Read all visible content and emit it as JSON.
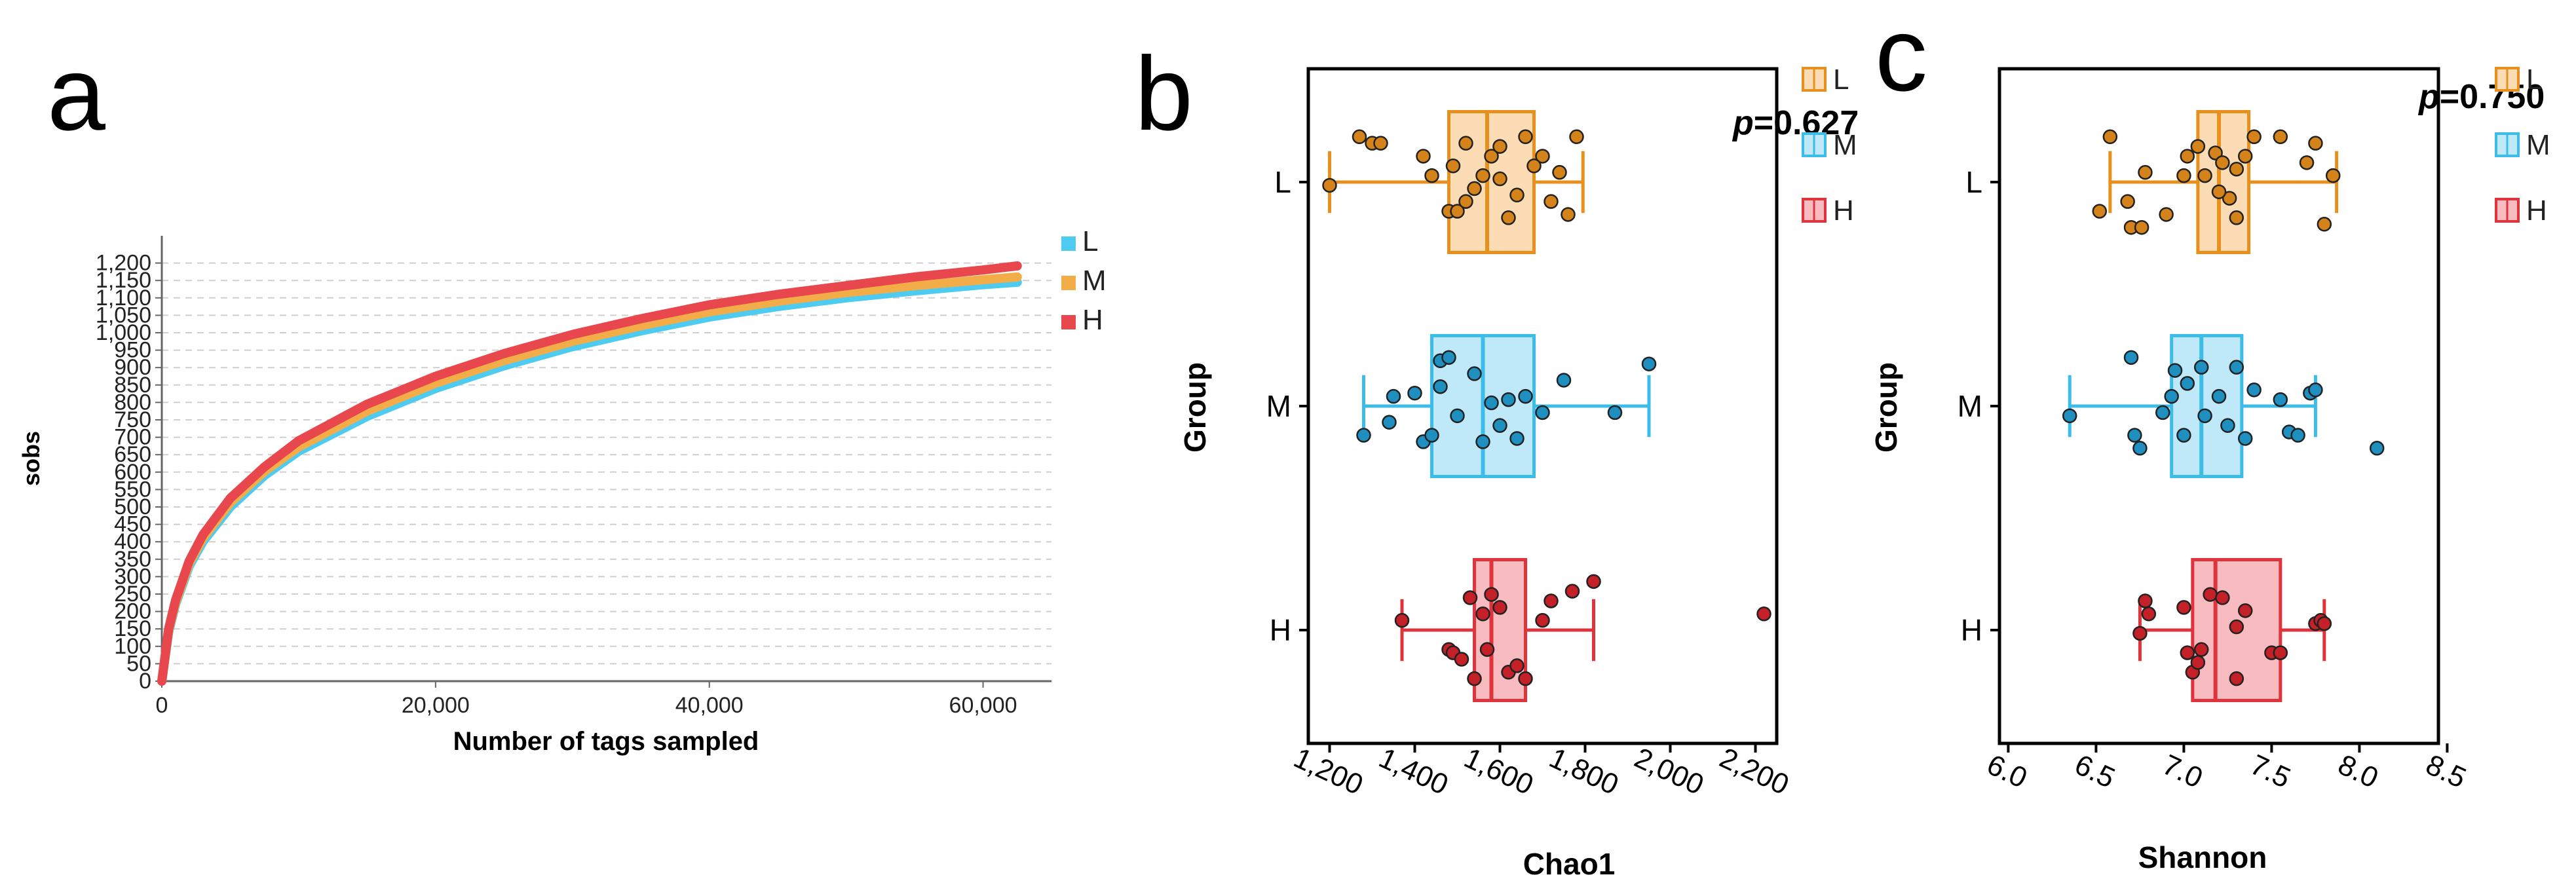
{
  "chart_data": [
    {
      "panel": "a",
      "type": "line",
      "title": "",
      "xlabel": "Number of tags sampled",
      "ylabel": "sobs",
      "xlim": [
        0,
        65000
      ],
      "ylim": [
        0,
        1250
      ],
      "xticks": [
        0,
        20000,
        40000,
        60000
      ],
      "xtick_labels": [
        "0",
        "20,000",
        "40,000",
        "60,000"
      ],
      "yticks": [
        0,
        50,
        100,
        150,
        200,
        250,
        300,
        350,
        400,
        450,
        500,
        550,
        600,
        650,
        700,
        750,
        800,
        850,
        900,
        950,
        1000,
        1050,
        1100,
        1150,
        1200
      ],
      "ytick_labels": [
        "0",
        "50",
        "100",
        "150",
        "200",
        "250",
        "300",
        "350",
        "400",
        "450",
        "500",
        "550",
        "600",
        "650",
        "700",
        "750",
        "800",
        "850",
        "900",
        "950",
        "1,000",
        "1,050",
        "1,100",
        "1,150",
        "1,200"
      ],
      "grid": true,
      "legend_position": "right",
      "series": [
        {
          "name": "L",
          "color": "#4ecbf0",
          "x": [
            0,
            500,
            1000,
            2000,
            3000,
            5000,
            7500,
            10000,
            15000,
            20000,
            25000,
            30000,
            35000,
            40000,
            45000,
            50000,
            55000,
            60000,
            62500
          ],
          "y": [
            0,
            140,
            220,
            330,
            400,
            500,
            590,
            660,
            760,
            840,
            905,
            960,
            1005,
            1045,
            1075,
            1100,
            1120,
            1138,
            1145
          ]
        },
        {
          "name": "M",
          "color": "#f2ac48",
          "x": [
            0,
            500,
            1000,
            2000,
            3000,
            5000,
            7500,
            10000,
            15000,
            20000,
            25000,
            30000,
            35000,
            40000,
            45000,
            50000,
            55000,
            60000,
            62500
          ],
          "y": [
            0,
            145,
            225,
            338,
            410,
            512,
            602,
            672,
            775,
            855,
            920,
            975,
            1020,
            1060,
            1090,
            1115,
            1135,
            1152,
            1160
          ]
        },
        {
          "name": "H",
          "color": "#e8474d",
          "x": [
            0,
            500,
            1000,
            2000,
            3000,
            5000,
            7500,
            10000,
            15000,
            20000,
            25000,
            30000,
            35000,
            40000,
            45000,
            50000,
            55000,
            60000,
            62500
          ],
          "y": [
            0,
            150,
            232,
            345,
            420,
            525,
            615,
            690,
            795,
            875,
            940,
            995,
            1040,
            1080,
            1110,
            1135,
            1160,
            1180,
            1192
          ]
        }
      ]
    },
    {
      "panel": "b",
      "type": "box",
      "xlabel": "Chao1",
      "ylabel": "Group",
      "xlim": [
        1150,
        2250
      ],
      "xticks": [
        1200,
        1400,
        1600,
        1800,
        2000,
        2200
      ],
      "xtick_labels": [
        "1,200",
        "1,400",
        "1,600",
        "1,800",
        "2,000",
        "2,200"
      ],
      "annotation_prefix": "p",
      "annotation_value": "=0.627",
      "legend_position": "right",
      "groups": [
        {
          "name": "L",
          "fill": "#fbdcb4",
          "stroke": "#e8901e",
          "dot": "#d4821a",
          "whisker_low": 1200,
          "q1": 1480,
          "median": 1570,
          "q3": 1680,
          "whisker_high": 1795,
          "points": [
            [
              1270,
              0.28
            ],
            [
              1300,
              0.24
            ],
            [
              1320,
              0.24
            ],
            [
              1200,
              -0.02
            ],
            [
              1420,
              0.16
            ],
            [
              1440,
              0.04
            ],
            [
              1480,
              -0.18
            ],
            [
              1500,
              -0.18
            ],
            [
              1490,
              0.1
            ],
            [
              1520,
              0.24
            ],
            [
              1540,
              -0.04
            ],
            [
              1560,
              0.04
            ],
            [
              1580,
              0.16
            ],
            [
              1600,
              0.22
            ],
            [
              1620,
              -0.22
            ],
            [
              1640,
              -0.08
            ],
            [
              1660,
              0.28
            ],
            [
              1700,
              0.16
            ],
            [
              1740,
              0.06
            ],
            [
              1720,
              -0.12
            ],
            [
              1760,
              -0.2
            ],
            [
              1780,
              0.28
            ],
            [
              1600,
              0.02
            ],
            [
              1520,
              -0.12
            ],
            [
              1680,
              0.1
            ]
          ]
        },
        {
          "name": "M",
          "fill": "#bfe9f8",
          "stroke": "#3cbce8",
          "dot": "#1f8fbf",
          "whisker_low": 1280,
          "q1": 1440,
          "median": 1560,
          "q3": 1680,
          "whisker_high": 1950,
          "points": [
            [
              1280,
              -0.18
            ],
            [
              1340,
              -0.1
            ],
            [
              1350,
              0.06
            ],
            [
              1400,
              0.08
            ],
            [
              1420,
              -0.22
            ],
            [
              1440,
              -0.18
            ],
            [
              1460,
              0.28
            ],
            [
              1480,
              0.3
            ],
            [
              1500,
              -0.06
            ],
            [
              1540,
              0.2
            ],
            [
              1560,
              -0.22
            ],
            [
              1580,
              0.02
            ],
            [
              1600,
              -0.12
            ],
            [
              1620,
              0.04
            ],
            [
              1640,
              -0.2
            ],
            [
              1660,
              0.06
            ],
            [
              1700,
              -0.04
            ],
            [
              1750,
              0.16
            ],
            [
              1870,
              -0.04
            ],
            [
              1950,
              0.26
            ],
            [
              1460,
              0.12
            ]
          ]
        },
        {
          "name": "H",
          "fill": "#f8bcc0",
          "stroke": "#e0343c",
          "dot": "#c42028",
          "whisker_low": 1370,
          "q1": 1540,
          "median": 1580,
          "q3": 1660,
          "whisker_high": 1820,
          "points": [
            [
              1370,
              0.06
            ],
            [
              1480,
              -0.12
            ],
            [
              1490,
              -0.14
            ],
            [
              1510,
              -0.18
            ],
            [
              1530,
              0.2
            ],
            [
              1540,
              -0.3
            ],
            [
              1560,
              0.1
            ],
            [
              1570,
              -0.12
            ],
            [
              1580,
              0.22
            ],
            [
              1600,
              0.14
            ],
            [
              1620,
              -0.26
            ],
            [
              1640,
              -0.22
            ],
            [
              1660,
              -0.3
            ],
            [
              1700,
              0.06
            ],
            [
              1720,
              0.18
            ],
            [
              1770,
              0.24
            ],
            [
              1820,
              0.3
            ],
            [
              2220,
              0.1
            ]
          ]
        }
      ]
    },
    {
      "panel": "c",
      "type": "box",
      "xlabel": "Shannon",
      "ylabel": "Group",
      "xlim": [
        5.95,
        8.45
      ],
      "xticks": [
        6.0,
        6.5,
        7.0,
        7.5,
        8.0,
        8.5
      ],
      "xtick_labels": [
        "6.0",
        "6.5",
        "7.0",
        "7.5",
        "8.0",
        "8.5"
      ],
      "annotation_prefix": "p",
      "annotation_value": "=0.750",
      "legend_position": "right",
      "groups": [
        {
          "name": "L",
          "fill": "#fbdcb4",
          "stroke": "#e8901e",
          "dot": "#d4821a",
          "whisker_low": 6.58,
          "q1": 7.08,
          "median": 7.2,
          "q3": 7.37,
          "whisker_high": 7.87,
          "points": [
            [
              6.58,
              0.28
            ],
            [
              6.52,
              -0.18
            ],
            [
              6.68,
              -0.12
            ],
            [
              6.7,
              -0.28
            ],
            [
              6.76,
              -0.28
            ],
            [
              6.78,
              0.06
            ],
            [
              6.9,
              -0.2
            ],
            [
              7.0,
              0.04
            ],
            [
              7.02,
              0.16
            ],
            [
              7.08,
              0.22
            ],
            [
              7.12,
              0.04
            ],
            [
              7.18,
              0.18
            ],
            [
              7.22,
              0.12
            ],
            [
              7.26,
              -0.1
            ],
            [
              7.3,
              0.08
            ],
            [
              7.35,
              0.16
            ],
            [
              7.4,
              0.28
            ],
            [
              7.55,
              0.28
            ],
            [
              7.7,
              0.12
            ],
            [
              7.75,
              0.24
            ],
            [
              7.8,
              -0.26
            ],
            [
              7.85,
              0.04
            ],
            [
              7.3,
              -0.22
            ],
            [
              7.2,
              -0.06
            ]
          ]
        },
        {
          "name": "M",
          "fill": "#bfe9f8",
          "stroke": "#3cbce8",
          "dot": "#1f8fbf",
          "whisker_low": 6.35,
          "q1": 6.93,
          "median": 7.1,
          "q3": 7.33,
          "whisker_high": 7.75,
          "points": [
            [
              6.35,
              -0.06
            ],
            [
              6.7,
              0.3
            ],
            [
              6.72,
              -0.18
            ],
            [
              6.75,
              -0.26
            ],
            [
              6.88,
              -0.04
            ],
            [
              6.93,
              0.06
            ],
            [
              6.95,
              0.22
            ],
            [
              7.0,
              -0.18
            ],
            [
              7.02,
              0.14
            ],
            [
              7.1,
              0.24
            ],
            [
              7.12,
              -0.06
            ],
            [
              7.2,
              0.06
            ],
            [
              7.25,
              -0.12
            ],
            [
              7.3,
              0.24
            ],
            [
              7.35,
              -0.2
            ],
            [
              7.4,
              0.1
            ],
            [
              7.55,
              0.04
            ],
            [
              7.6,
              -0.16
            ],
            [
              7.65,
              -0.18
            ],
            [
              7.72,
              0.08
            ],
            [
              7.75,
              0.1
            ],
            [
              8.1,
              -0.26
            ]
          ]
        },
        {
          "name": "H",
          "fill": "#f8bcc0",
          "stroke": "#e0343c",
          "dot": "#c42028",
          "whisker_low": 6.75,
          "q1": 7.05,
          "median": 7.18,
          "q3": 7.55,
          "whisker_high": 7.8,
          "points": [
            [
              6.75,
              -0.02
            ],
            [
              6.78,
              0.18
            ],
            [
              6.8,
              0.1
            ],
            [
              7.0,
              0.14
            ],
            [
              7.02,
              -0.14
            ],
            [
              7.05,
              -0.26
            ],
            [
              7.08,
              -0.2
            ],
            [
              7.1,
              -0.12
            ],
            [
              7.15,
              0.22
            ],
            [
              7.22,
              0.2
            ],
            [
              7.3,
              0.02
            ],
            [
              7.35,
              0.12
            ],
            [
              7.5,
              -0.14
            ],
            [
              7.55,
              -0.14
            ],
            [
              7.75,
              0.04
            ],
            [
              7.78,
              0.06
            ],
            [
              7.8,
              0.04
            ],
            [
              7.3,
              -0.3
            ]
          ]
        }
      ]
    }
  ],
  "panels": {
    "a": {
      "letter": "a"
    },
    "b": {
      "letter": "b"
    },
    "c": {
      "letter": "c"
    }
  }
}
